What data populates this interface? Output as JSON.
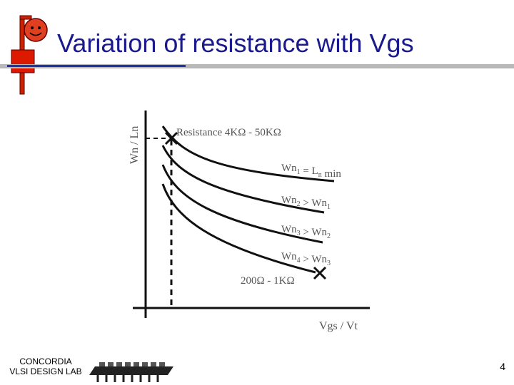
{
  "slide": {
    "title": "Variation of resistance with Vgs",
    "page_number": "4",
    "lab_name": [
      "CONCORDIA",
      "VLSI DESIGN LAB"
    ]
  },
  "chart_data": {
    "type": "line",
    "title": "",
    "xlabel": "Vgs / Vt",
    "ylabel": "Wn / Ln",
    "grid": false,
    "series": [
      {
        "name": "Wn1 = Ln min"
      },
      {
        "name": "Wn2 > Wn1"
      },
      {
        "name": "Wn3 > Wn2"
      },
      {
        "name": "Wn4 > Wn3"
      }
    ],
    "annotations": {
      "top": "Resistance 4KΩ - 50KΩ",
      "bottom": "200Ω - 1KΩ"
    },
    "labels": [
      {
        "main": "Wn",
        "sub1": "1",
        "mid": " = L",
        "sub2": "n",
        "tail": " min"
      },
      {
        "main": "Wn",
        "sub1": "2",
        "mid": " > Wn",
        "sub2": "1",
        "tail": ""
      },
      {
        "main": "Wn",
        "sub1": "3",
        "mid": " > Wn",
        "sub2": "2",
        "tail": ""
      },
      {
        "main": "Wn",
        "sub1": "4",
        "mid": " > Wn",
        "sub2": "3",
        "tail": ""
      }
    ]
  }
}
